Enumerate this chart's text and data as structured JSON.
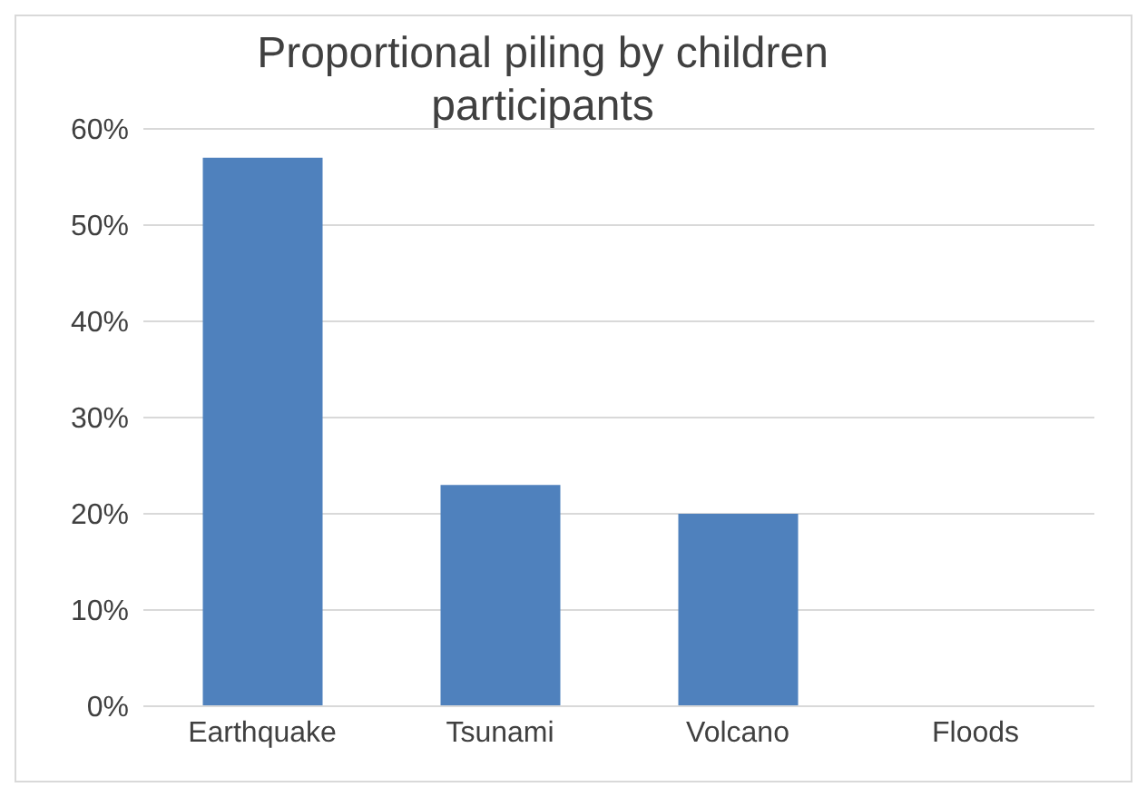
{
  "chart_data": {
    "type": "bar",
    "title": "Proportional piling by children participants",
    "categories": [
      "Earthquake",
      "Tsunami",
      "Volcano",
      "Floods"
    ],
    "values": [
      57,
      23,
      20,
      0
    ],
    "color": "#4f81bd",
    "ylim": [
      0,
      60
    ],
    "yticks": [
      {
        "value": 0,
        "label": "0%"
      },
      {
        "value": 10,
        "label": "10%"
      },
      {
        "value": 20,
        "label": "20%"
      },
      {
        "value": 30,
        "label": "30%"
      },
      {
        "value": 40,
        "label": "40%"
      },
      {
        "value": 50,
        "label": "50%"
      },
      {
        "value": 60,
        "label": "60%"
      }
    ],
    "grid": "y"
  }
}
